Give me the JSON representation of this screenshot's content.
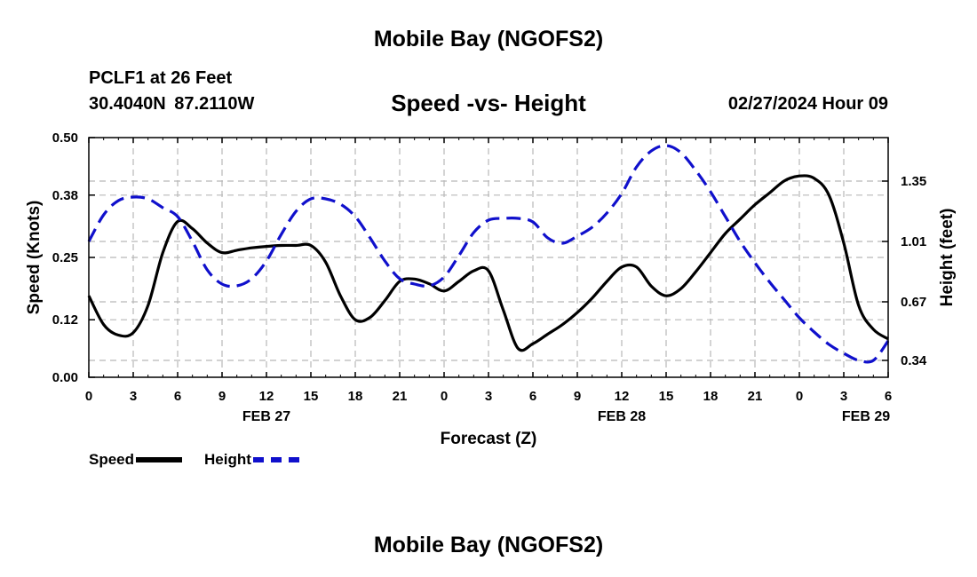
{
  "header": {
    "title": "Mobile Bay (NGOFS2)",
    "station": "PCLF1 at 26 Feet",
    "coords": "30.4040N 87.2110W",
    "subtitle": "Speed -vs- Height",
    "datetime": "02/27/2024 Hour 09"
  },
  "footer": {
    "title": "Mobile Bay (NGOFS2)"
  },
  "legend": {
    "speed_label": "Speed",
    "height_label": "Height"
  },
  "chart_data": {
    "type": "line",
    "xlabel": "Forecast (Z)",
    "ylabel_left": "Speed (Knots)",
    "ylabel_right": "Height (feet)",
    "x_range_hours": [
      0,
      54
    ],
    "x_ticks": [
      "0",
      "3",
      "6",
      "9",
      "12",
      "15",
      "18",
      "21",
      "0",
      "3",
      "6",
      "9",
      "12",
      "15",
      "18",
      "21",
      "0",
      "3",
      "6"
    ],
    "date_labels": [
      {
        "label": "FEB 27",
        "hour": 12
      },
      {
        "label": "FEB 28",
        "hour": 36
      },
      {
        "label": "FEB 29",
        "hour": 52.5
      }
    ],
    "y_left": {
      "range": [
        0,
        0.5
      ],
      "ticks": [
        "0.00",
        "0.12",
        "0.25",
        "0.38",
        "0.50"
      ]
    },
    "y_right": {
      "range": [
        0.245,
        1.595
      ],
      "ticks": [
        "0.34",
        "0.67",
        "1.01",
        "1.35"
      ]
    },
    "grid": true,
    "colors": {
      "speed": "#000000",
      "height": "#1010cc"
    },
    "series": [
      {
        "name": "Speed",
        "axis": "left",
        "style": "solid",
        "x": [
          0,
          1,
          2,
          3,
          4,
          5,
          6,
          7,
          8,
          9,
          10,
          11,
          12,
          13,
          14,
          15,
          16,
          17,
          18,
          19,
          20,
          21,
          22,
          23,
          24,
          25,
          26,
          27,
          28,
          29,
          30,
          31,
          32,
          33,
          34,
          35,
          36,
          37,
          38,
          39,
          40,
          41,
          42,
          43,
          44,
          45,
          46,
          47,
          48,
          49,
          50,
          51,
          52,
          53,
          54
        ],
        "y": [
          0.17,
          0.11,
          0.088,
          0.093,
          0.15,
          0.26,
          0.325,
          0.31,
          0.28,
          0.26,
          0.265,
          0.27,
          0.273,
          0.275,
          0.275,
          0.275,
          0.24,
          0.17,
          0.12,
          0.125,
          0.16,
          0.2,
          0.205,
          0.195,
          0.18,
          0.2,
          0.222,
          0.222,
          0.14,
          0.06,
          0.07,
          0.09,
          0.11,
          0.135,
          0.165,
          0.2,
          0.23,
          0.23,
          0.19,
          0.17,
          0.185,
          0.22,
          0.26,
          0.3,
          0.33,
          0.36,
          0.385,
          0.41,
          0.42,
          0.415,
          0.38,
          0.28,
          0.15,
          0.1,
          0.08
        ]
      },
      {
        "name": "Height",
        "axis": "right",
        "style": "dashed",
        "x": [
          0,
          1,
          2,
          3,
          4,
          5,
          6,
          7,
          8,
          9,
          10,
          11,
          12,
          13,
          14,
          15,
          16,
          17,
          18,
          19,
          20,
          21,
          22,
          23,
          24,
          25,
          26,
          27,
          28,
          29,
          30,
          31,
          32,
          33,
          34,
          35,
          36,
          37,
          38,
          39,
          40,
          41,
          42,
          43,
          44,
          45,
          46,
          47,
          48,
          49,
          50,
          51,
          52,
          53,
          54
        ],
        "y": [
          1.01,
          1.16,
          1.24,
          1.26,
          1.25,
          1.2,
          1.15,
          1.01,
          0.85,
          0.77,
          0.76,
          0.8,
          0.9,
          1.05,
          1.18,
          1.25,
          1.25,
          1.22,
          1.15,
          1.03,
          0.9,
          0.8,
          0.77,
          0.76,
          0.81,
          0.93,
          1.06,
          1.13,
          1.14,
          1.14,
          1.12,
          1.03,
          1.0,
          1.04,
          1.09,
          1.17,
          1.28,
          1.43,
          1.52,
          1.55,
          1.51,
          1.41,
          1.29,
          1.15,
          1.01,
          0.89,
          0.78,
          0.68,
          0.58,
          0.5,
          0.43,
          0.38,
          0.34,
          0.34,
          0.45
        ]
      }
    ]
  }
}
